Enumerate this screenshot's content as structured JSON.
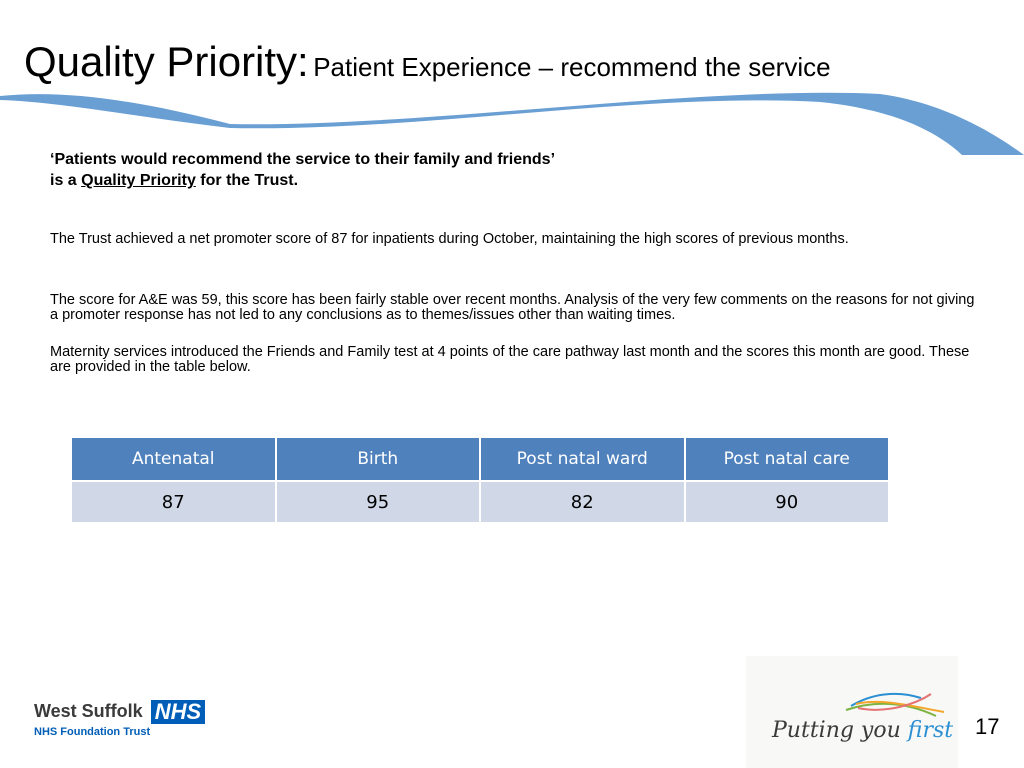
{
  "title": {
    "main": "Quality Priority:",
    "sub": "Patient Experience – recommend the service"
  },
  "heading": {
    "line1": "‘Patients would recommend the service to their family and friends’",
    "line2_prefix": "is a",
    "line2_link": "Quality Priority",
    "line2_suffix": "for the Trust."
  },
  "paragraphs": [
    "The Trust achieved a net promoter score of 87 for inpatients during October, maintaining the high scores of previous months.",
    "The score for A&E was 59, this score has been fairly stable over recent months. Analysis of the very few comments on the reasons for not giving a promoter response has not led to any conclusions as to themes/issues other than waiting times.",
    "Maternity services introduced the Friends and Family test at 4 points of the care pathway last month and the scores this month are good. These are provided in the table below."
  ],
  "table": {
    "headers": [
      "Antenatal",
      "Birth",
      "Post natal ward",
      "Post natal care"
    ],
    "values": [
      "87",
      "95",
      "82",
      "90"
    ]
  },
  "footer": {
    "org_name": "West Suffolk",
    "nhs_badge": "NHS",
    "org_sub": "NHS Foundation Trust",
    "tagline_part1": "Putting you",
    "tagline_part2": "first",
    "page_number": "17"
  },
  "colors": {
    "swoosh": "#6a9fd4",
    "table_header": "#4f81bd",
    "table_row": "#d0d8e8",
    "nhs_blue": "#005eb8"
  }
}
